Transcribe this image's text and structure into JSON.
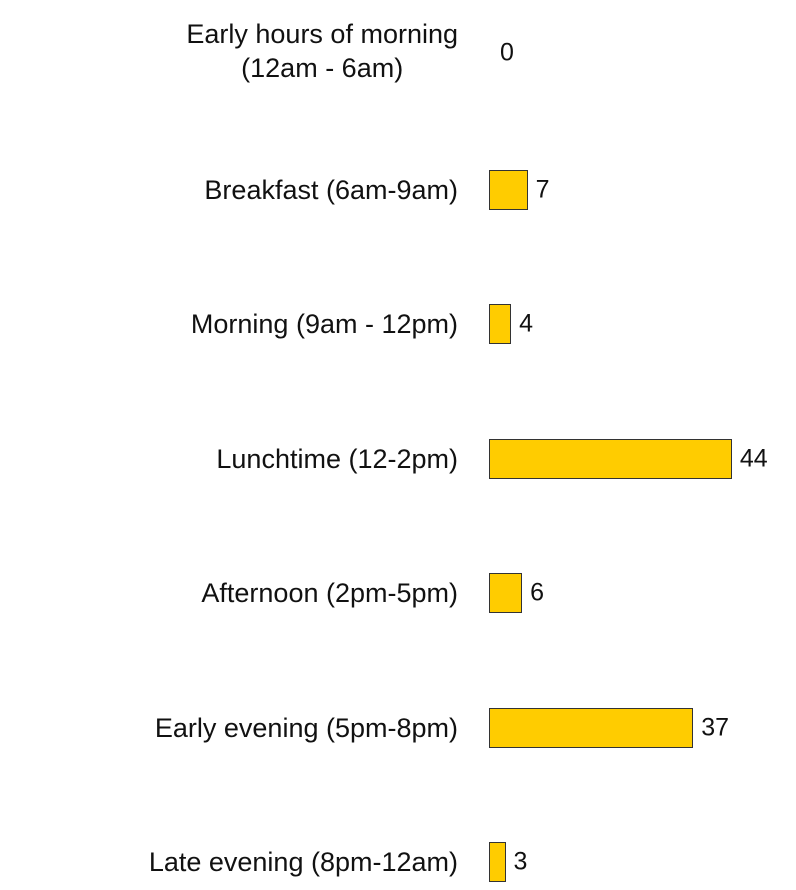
{
  "chart_data": {
    "type": "bar",
    "orientation": "horizontal",
    "categories": [
      "Early hours of morning\n(12am - 6am)",
      "Breakfast (6am-9am)",
      "Morning (9am - 12pm)",
      "Lunchtime (12-2pm)",
      "Afternoon (2pm-5pm)",
      "Early evening (5pm-8pm)",
      "Late evening (8pm-12am)"
    ],
    "values": [
      0,
      7,
      4,
      44,
      6,
      37,
      3
    ],
    "color": "#ffcc00"
  }
}
